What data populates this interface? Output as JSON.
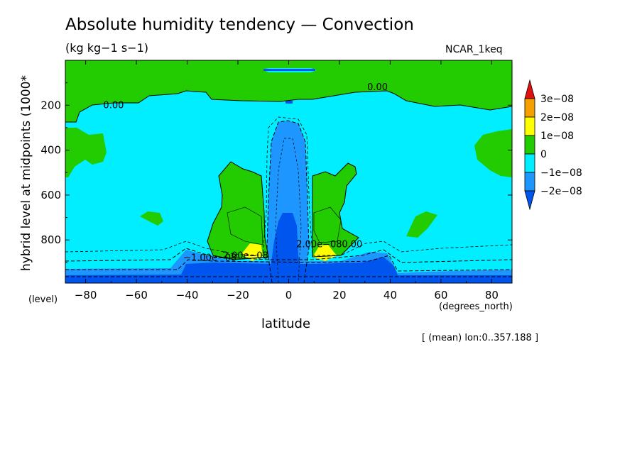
{
  "chart_data": {
    "type": "heatmap",
    "title": "Absolute humidity tendency — Convection",
    "subtitle": "(kg kg−1 s−1)",
    "source_label": "NCAR_1keq",
    "xlabel": "latitude",
    "x_units": "(degrees_north)",
    "ylabel": "hybrid level at midpoints (1000*",
    "y_units": "(level)",
    "footnote": "[ (mean) lon:0..357.188 ]",
    "xlim": [
      -88,
      88
    ],
    "ylim": [
      0,
      992
    ],
    "y_inverted": true,
    "x_ticks": [
      -80,
      -60,
      -40,
      -20,
      0,
      20,
      40,
      60,
      80
    ],
    "x_tick_labels": [
      "−80",
      "−60",
      "−40",
      "−20",
      "0",
      "20",
      "40",
      "60",
      "80"
    ],
    "y_ticks": [
      200,
      400,
      600,
      800
    ],
    "y_tick_labels": [
      "200",
      "400",
      "600",
      "800"
    ],
    "colorbar": {
      "levels": [
        "3e−08",
        "2e−08",
        "1e−08",
        "0",
        "−1e−08",
        "−2e−08"
      ],
      "bins": [
        {
          "range": ">3e-08",
          "color": "#e01010"
        },
        {
          "range": "2e-08..3e-08",
          "color": "#f5a000"
        },
        {
          "range": "1e-08..2e-08",
          "color": "#ffff00"
        },
        {
          "range": "0..1e-08",
          "color": "#22cc00"
        },
        {
          "range": "-1e-08..0",
          "color": "#00eeff"
        },
        {
          "range": "-2e-08..-1e-08",
          "color": "#1e96ff"
        },
        {
          "range": "<-2e-08",
          "color": "#0055ee"
        }
      ]
    },
    "contour_labels": [
      {
        "text": "0.00",
        "lat": -69,
        "level": 200
      },
      {
        "text": "0.00",
        "lat": 35,
        "level": 120
      },
      {
        "text": "−1.00e−08",
        "lat": -31,
        "level": 880
      },
      {
        "text": "2.00e−08",
        "lat": -17,
        "level": 870
      },
      {
        "text": "2.00e−08",
        "lat": 12,
        "level": 820
      },
      {
        "text": "0.00",
        "lat": 25,
        "level": 820
      }
    ],
    "regions": [
      {
        "name": "positive-upper-band",
        "value_range": "0..1e-08",
        "lat_range": [
          -88,
          88
        ],
        "level_range": [
          0,
          200
        ]
      },
      {
        "name": "negative-interior",
        "value_range": "-1e-08..0",
        "lat_range": [
          -88,
          88
        ],
        "level_range": [
          150,
          900
        ]
      },
      {
        "name": "positive-subtropics-south",
        "value_range": "0..1e-08",
        "lat_range": [
          -30,
          -12
        ],
        "level_range": [
          450,
          880
        ]
      },
      {
        "name": "positive-subtropics-north",
        "value_range": "0..1e-08",
        "lat_range": [
          9,
          28
        ],
        "level_range": [
          450,
          880
        ]
      },
      {
        "name": "yellow-max-south",
        "value_range": "1e-08..2e-08",
        "lat_range": [
          -19,
          -12
        ],
        "level_range": [
          835,
          875
        ]
      },
      {
        "name": "yellow-max-north",
        "value_range": "1e-08..2e-08",
        "lat_range": [
          10,
          18
        ],
        "level_range": [
          845,
          880
        ]
      },
      {
        "name": "equatorial-column",
        "value_range": "<-2e-08",
        "lat_range": [
          -8,
          8
        ],
        "level_range": [
          700,
          992
        ]
      },
      {
        "name": "near-surface-minimum",
        "value_range": "<-2e-08",
        "lat_range": [
          -88,
          88
        ],
        "level_range": [
          935,
          992
        ]
      }
    ]
  }
}
